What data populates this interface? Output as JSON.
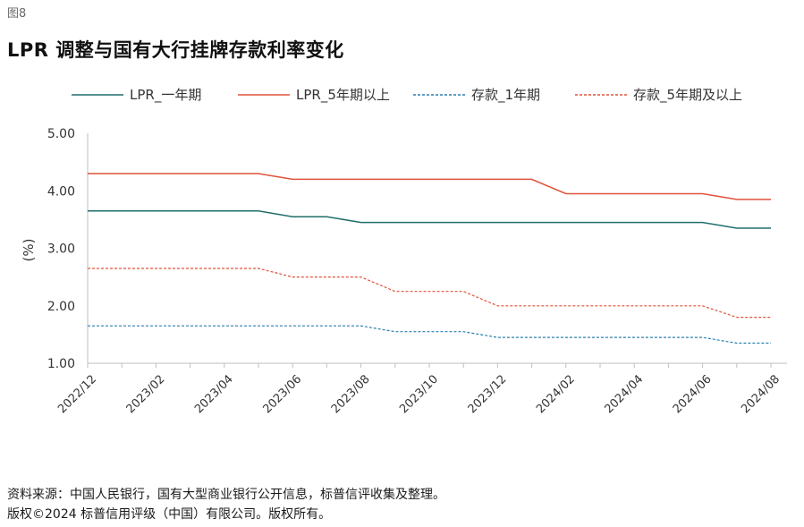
{
  "figure_label": "图8",
  "title": "LPR 调整与国有大行挂牌存款利率变化",
  "source_line1": "资料来源：中国人民银行，国有大型商业银行公开信息，标普信评收集及整理。",
  "source_line2": "版权©2024 标普信用评级（中国）有限公司。版权所有。",
  "colors": {
    "teal": "#1f6f6b",
    "red": "#e0533a",
    "blue_dashed": "#2a7fb0",
    "red_dashed": "#e0533a",
    "axis": "#bfbfbf"
  },
  "chart_data": {
    "type": "line",
    "ylabel": "(%)",
    "ylim": [
      1.0,
      5.0
    ],
    "yticks": [
      "5.00",
      "4.00",
      "3.00",
      "2.00",
      "1.00"
    ],
    "yticks_values": [
      5,
      4,
      3,
      2,
      1
    ],
    "grid": false,
    "legend_position": "top",
    "x": [
      "2022/12",
      "2023/01",
      "2023/02",
      "2023/03",
      "2023/04",
      "2023/05",
      "2023/06",
      "2023/07",
      "2023/08",
      "2023/09",
      "2023/10",
      "2023/11",
      "2023/12",
      "2024/01",
      "2024/02",
      "2024/03",
      "2024/04",
      "2024/05",
      "2024/06",
      "2024/07",
      "2024/08"
    ],
    "xtick_labels": [
      "2022/12",
      "2023/02",
      "2023/04",
      "2023/06",
      "2023/08",
      "2023/10",
      "2023/12",
      "2024/02",
      "2024/04",
      "2024/06",
      "2024/08"
    ],
    "series": [
      {
        "name": "LPR_一年期",
        "style": "solid",
        "color": "#1f6f6b",
        "values": [
          3.65,
          3.65,
          3.65,
          3.65,
          3.65,
          3.65,
          3.55,
          3.55,
          3.45,
          3.45,
          3.45,
          3.45,
          3.45,
          3.45,
          3.45,
          3.45,
          3.45,
          3.45,
          3.45,
          3.35,
          3.35
        ]
      },
      {
        "name": "LPR_5年期以上",
        "style": "solid",
        "color": "#e0533a",
        "values": [
          4.3,
          4.3,
          4.3,
          4.3,
          4.3,
          4.3,
          4.2,
          4.2,
          4.2,
          4.2,
          4.2,
          4.2,
          4.2,
          4.2,
          3.95,
          3.95,
          3.95,
          3.95,
          3.95,
          3.85,
          3.85
        ]
      },
      {
        "name": "存款_1年期",
        "style": "dashed",
        "color": "#2a7fb0",
        "values": [
          1.65,
          1.65,
          1.65,
          1.65,
          1.65,
          1.65,
          1.65,
          1.65,
          1.65,
          1.55,
          1.55,
          1.55,
          1.45,
          1.45,
          1.45,
          1.45,
          1.45,
          1.45,
          1.45,
          1.35,
          1.35
        ]
      },
      {
        "name": "存款_5年期及以上",
        "style": "dashed",
        "color": "#e0533a",
        "values": [
          2.65,
          2.65,
          2.65,
          2.65,
          2.65,
          2.65,
          2.5,
          2.5,
          2.5,
          2.25,
          2.25,
          2.25,
          2.0,
          2.0,
          2.0,
          2.0,
          2.0,
          2.0,
          2.0,
          1.8,
          1.8
        ]
      }
    ]
  }
}
